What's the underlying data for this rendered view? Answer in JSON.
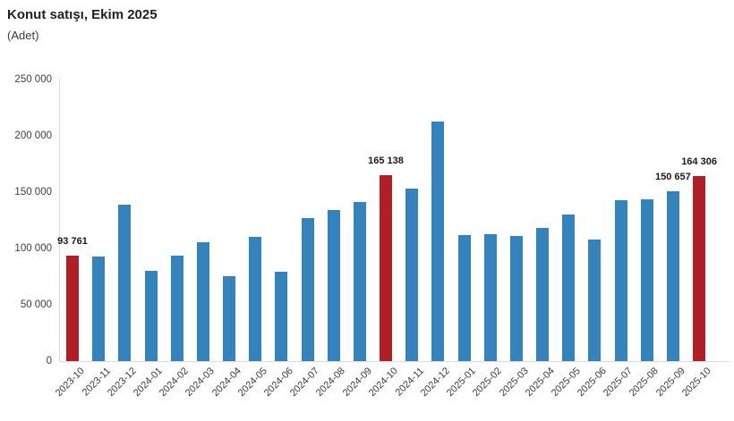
{
  "header": {
    "title": "Konut satışı, Ekim 2025",
    "subtitle": "(Adet)"
  },
  "chart_data": {
    "type": "bar",
    "title": "Konut satışı, Ekim 2025",
    "unit_label": "(Adet)",
    "xlabel": "",
    "ylabel": "(Adet)",
    "ylim": [
      0,
      250000
    ],
    "grid": false,
    "legend_position": "none",
    "ytick_values": [
      0,
      50000,
      100000,
      150000,
      200000,
      250000
    ],
    "ytick_labels": [
      "0",
      "50 000",
      "100 000",
      "150 000",
      "200 000",
      "250 000"
    ],
    "bar_color_default": "#3583BD",
    "bar_color_highlight": "#B01E28",
    "axis_color": "#dcdcdc",
    "categories": [
      "2023-10",
      "2023-11",
      "2023-12",
      "2024-01",
      "2024-02",
      "2024-03",
      "2024-04",
      "2024-05",
      "2024-06",
      "2024-07",
      "2024-08",
      "2024-09",
      "2024-10",
      "2024-11",
      "2024-12",
      "2025-01",
      "2025-02",
      "2025-03",
      "2025-04",
      "2025-05",
      "2025-06",
      "2025-07",
      "2025-08",
      "2025-09",
      "2025-10"
    ],
    "values": [
      93761,
      93178,
      138577,
      80308,
      93902,
      105476,
      75569,
      110588,
      79313,
      127088,
      134155,
      140919,
      165138,
      153014,
      212637,
      112173,
      112818,
      110795,
      118359,
      130025,
      107723,
      142858,
      143319,
      150657,
      164306
    ],
    "highlight_indices": [
      0,
      12,
      24
    ],
    "value_labels": [
      {
        "index": 0,
        "text": "93 761"
      },
      {
        "index": 12,
        "text": "165 138"
      },
      {
        "index": 23,
        "text": "150 657"
      },
      {
        "index": 24,
        "text": "164 306"
      }
    ]
  }
}
